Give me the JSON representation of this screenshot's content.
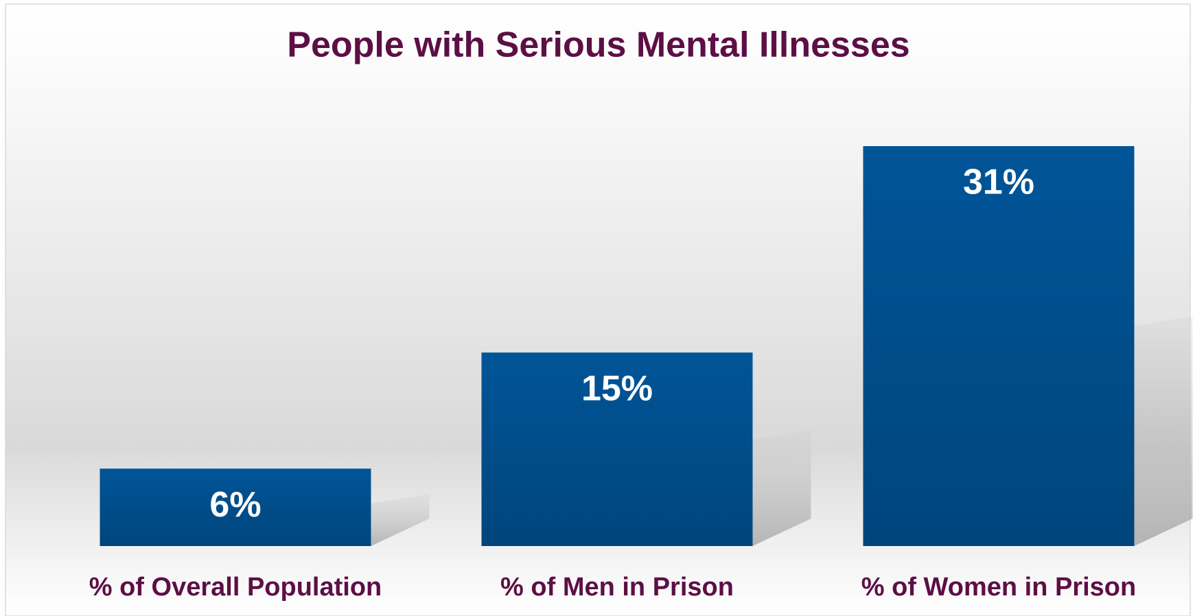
{
  "chart_data": {
    "type": "bar",
    "title": "People with Serious Mental Illnesses",
    "categories": [
      "% of Overall Population",
      "% of Men in Prison",
      "% of Women in Prison"
    ],
    "values": [
      6,
      15,
      31
    ],
    "value_labels": [
      "6%",
      "15%",
      "31%"
    ],
    "color": "#004f8f",
    "title_color": "#5c0f45",
    "label_color": "#ffffff",
    "grid": false
  }
}
